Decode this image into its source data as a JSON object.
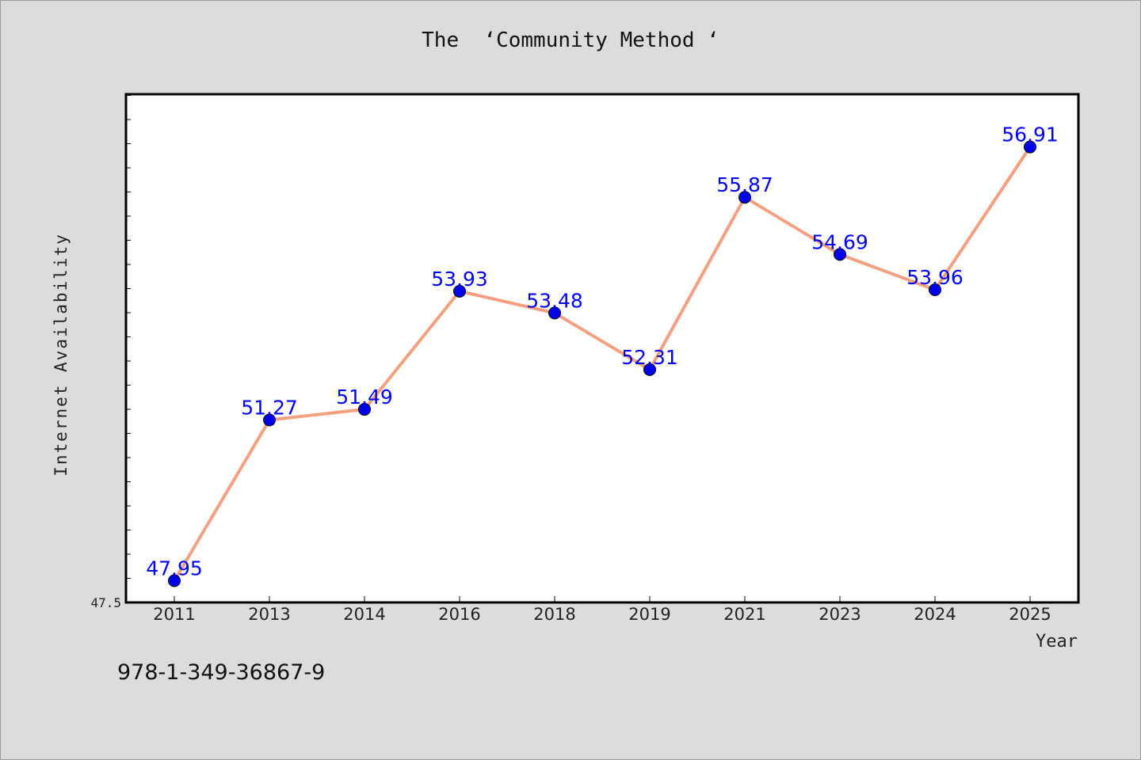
{
  "chart_data": {
    "type": "line",
    "title": "The  ‘Community Method ‘",
    "xlabel": "Year",
    "ylabel": "Internet Availability",
    "categories": [
      "2011",
      "2013",
      "2014",
      "2016",
      "2018",
      "2019",
      "2021",
      "2023",
      "2024",
      "2025"
    ],
    "series": [
      {
        "values": [
          47.95,
          51.27,
          51.49,
          53.93,
          53.48,
          52.31,
          55.87,
          54.69,
          53.96,
          56.91
        ],
        "data_labels": [
          "47.95",
          "51.27",
          "51.49",
          "53.93",
          "53.48",
          "52.31",
          "55.87",
          "54.69",
          "53.96",
          "56.91"
        ],
        "line_color": "#f4a07e",
        "marker_color": "#0000ee",
        "label_color": "#0000ff"
      }
    ],
    "ylim": [
      47.5,
      58.0
    ],
    "y_tick_label": "47.5",
    "grid": false,
    "legend": "none"
  },
  "footer": {
    "isbn": "978-1-349-36867-9"
  }
}
